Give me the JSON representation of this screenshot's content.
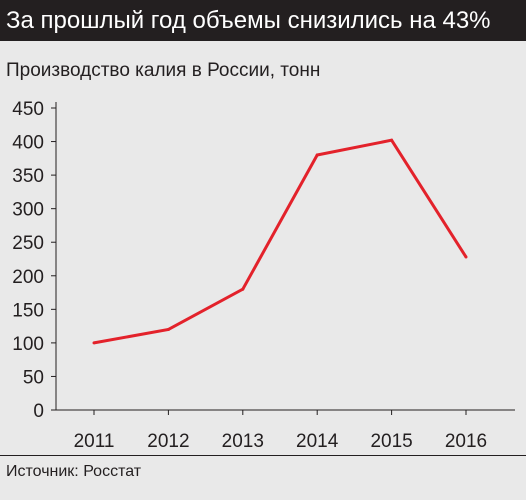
{
  "header": {
    "title": "За прошлый год объемы снизились на 43%",
    "subtitle": "Производство калия в России, тонн"
  },
  "footer": {
    "source": "Источник: Росстат"
  },
  "chart_data": {
    "type": "line",
    "title": "За прошлый год объемы снизились на 43%",
    "subtitle": "Производство калия в России, тонн",
    "xlabel": "",
    "ylabel": "",
    "categories": [
      "2011",
      "2012",
      "2013",
      "2014",
      "2015",
      "2016"
    ],
    "series": [
      {
        "values": [
          100,
          120,
          180,
          380,
          402,
          228
        ],
        "color": "#e3222b"
      }
    ],
    "ylim": [
      0,
      450
    ],
    "yticks": [
      0,
      50,
      100,
      150,
      200,
      250,
      300,
      350,
      400,
      450
    ],
    "grid": false
  }
}
